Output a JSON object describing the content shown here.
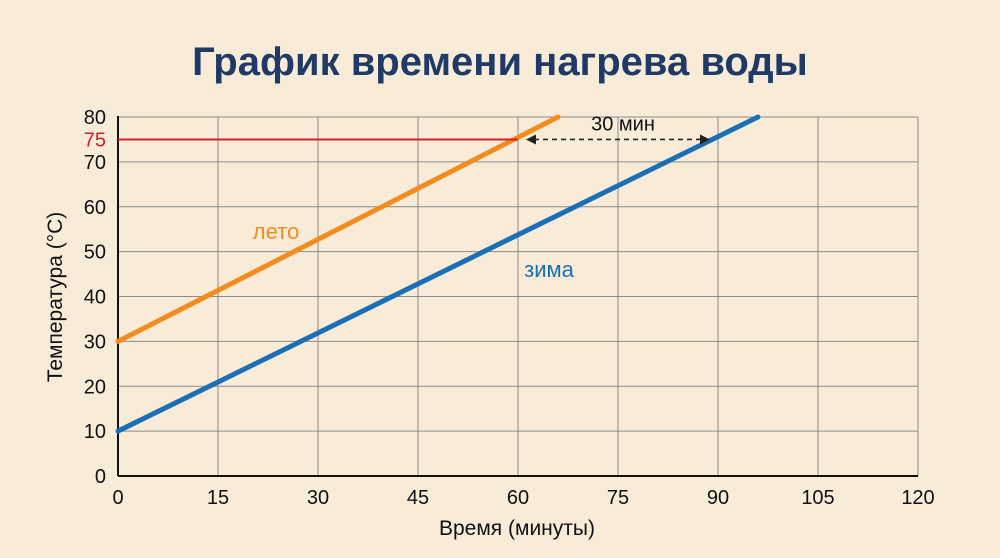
{
  "chart_data": {
    "type": "line",
    "title": "График времени нагрева воды",
    "xlabel": "Время (минуты)",
    "ylabel": "Температура (°C)",
    "xlim": [
      0,
      120
    ],
    "ylim": [
      0,
      80
    ],
    "x_ticks": [
      0,
      15,
      30,
      45,
      60,
      75,
      90,
      105,
      120
    ],
    "y_ticks": [
      0,
      10,
      20,
      30,
      40,
      50,
      60,
      70,
      80
    ],
    "grid": true,
    "series": [
      {
        "name": "лето",
        "color": "#f28c1e",
        "x": [
          0,
          66
        ],
        "y": [
          30,
          80
        ]
      },
      {
        "name": "зима",
        "color": "#1a6fb5",
        "x": [
          0,
          96
        ],
        "y": [
          10,
          80
        ]
      }
    ],
    "annotations": {
      "highlight_level": {
        "value": 75,
        "label": "75",
        "color": "#d0202a",
        "x_end": 60
      },
      "difference": {
        "label": "30 мин",
        "x_start": 60,
        "x_end": 90,
        "y": 75
      }
    }
  }
}
